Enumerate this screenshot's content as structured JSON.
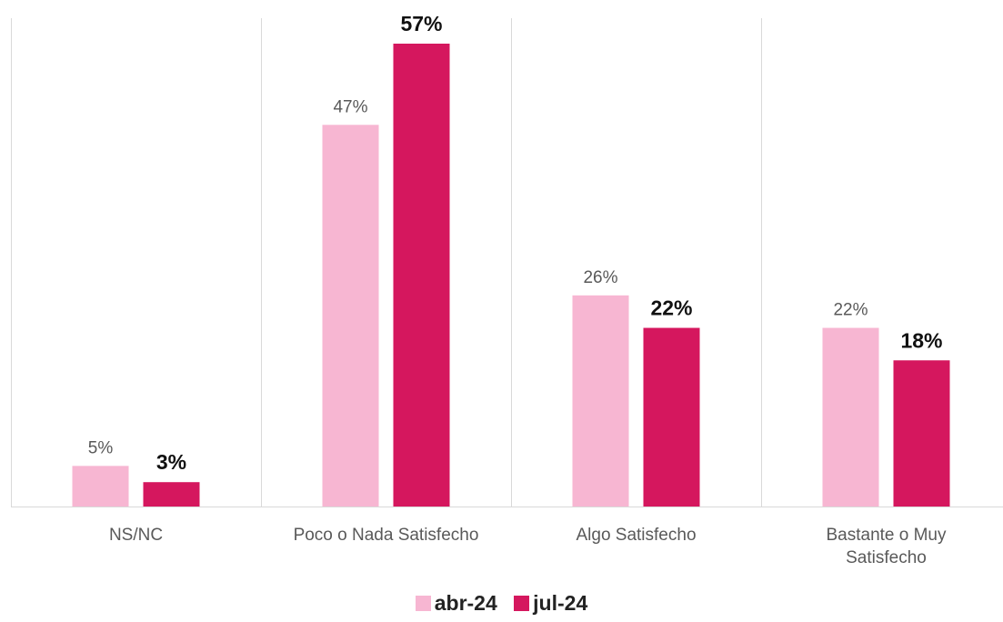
{
  "chart_data": {
    "type": "bar",
    "categories": [
      "NS/NC",
      "Poco o Nada Satisfecho",
      "Algo Satisfecho",
      "Bastante o Muy Satisfecho"
    ],
    "category_lines": [
      [
        "NS/NC"
      ],
      [
        "Poco o Nada Satisfecho"
      ],
      [
        "Algo Satisfecho"
      ],
      [
        "Bastante o Muy",
        "Satisfecho"
      ]
    ],
    "series": [
      {
        "name": "abr-24",
        "values": [
          5,
          47,
          26,
          22
        ],
        "labels": [
          "5%",
          "47%",
          "26%",
          "22%"
        ],
        "color": "#f7b6d2"
      },
      {
        "name": "jul-24",
        "values": [
          3,
          57,
          22,
          18
        ],
        "labels": [
          "3%",
          "57%",
          "22%",
          "18%"
        ],
        "color": "#d5175e"
      }
    ],
    "ylim": [
      0,
      60
    ],
    "grid": false,
    "legend": "bottom",
    "title": "",
    "xlabel": "",
    "ylabel": ""
  }
}
